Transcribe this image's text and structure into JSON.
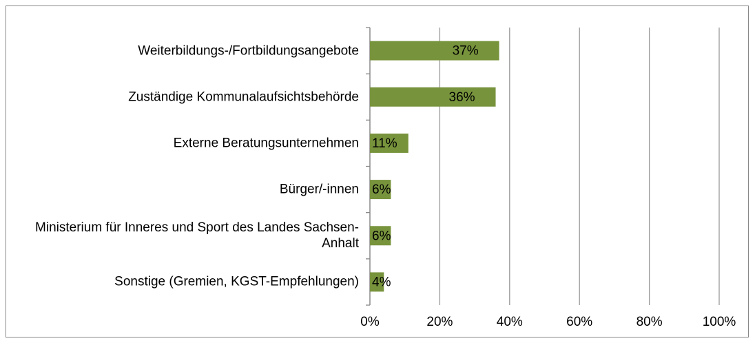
{
  "chart_data": {
    "type": "bar",
    "orientation": "horizontal",
    "categories": [
      "Weiterbildungs-/Fortbildungsangebote",
      "Zuständige Kommunalaufsichtsbehörde",
      "Externe Beratungsunternehmen",
      "Bürger/-innen",
      "Ministerium für Inneres und Sport des Landes Sachsen-Anhalt",
      "Sonstige (Gremien, KGST-Empfehlungen)"
    ],
    "values": [
      37,
      36,
      11,
      6,
      6,
      4
    ],
    "value_labels": [
      "37%",
      "36%",
      "11%",
      "6%",
      "6%",
      "4%"
    ],
    "color": "#77933c",
    "xlim": [
      0,
      100
    ],
    "xticks": [
      {
        "value": 0,
        "label": "0%"
      },
      {
        "value": 20,
        "label": "20%"
      },
      {
        "value": 40,
        "label": "40%"
      },
      {
        "value": 60,
        "label": "60%"
      },
      {
        "value": 80,
        "label": "80%"
      },
      {
        "value": 100,
        "label": "100%"
      }
    ],
    "grid": true
  }
}
